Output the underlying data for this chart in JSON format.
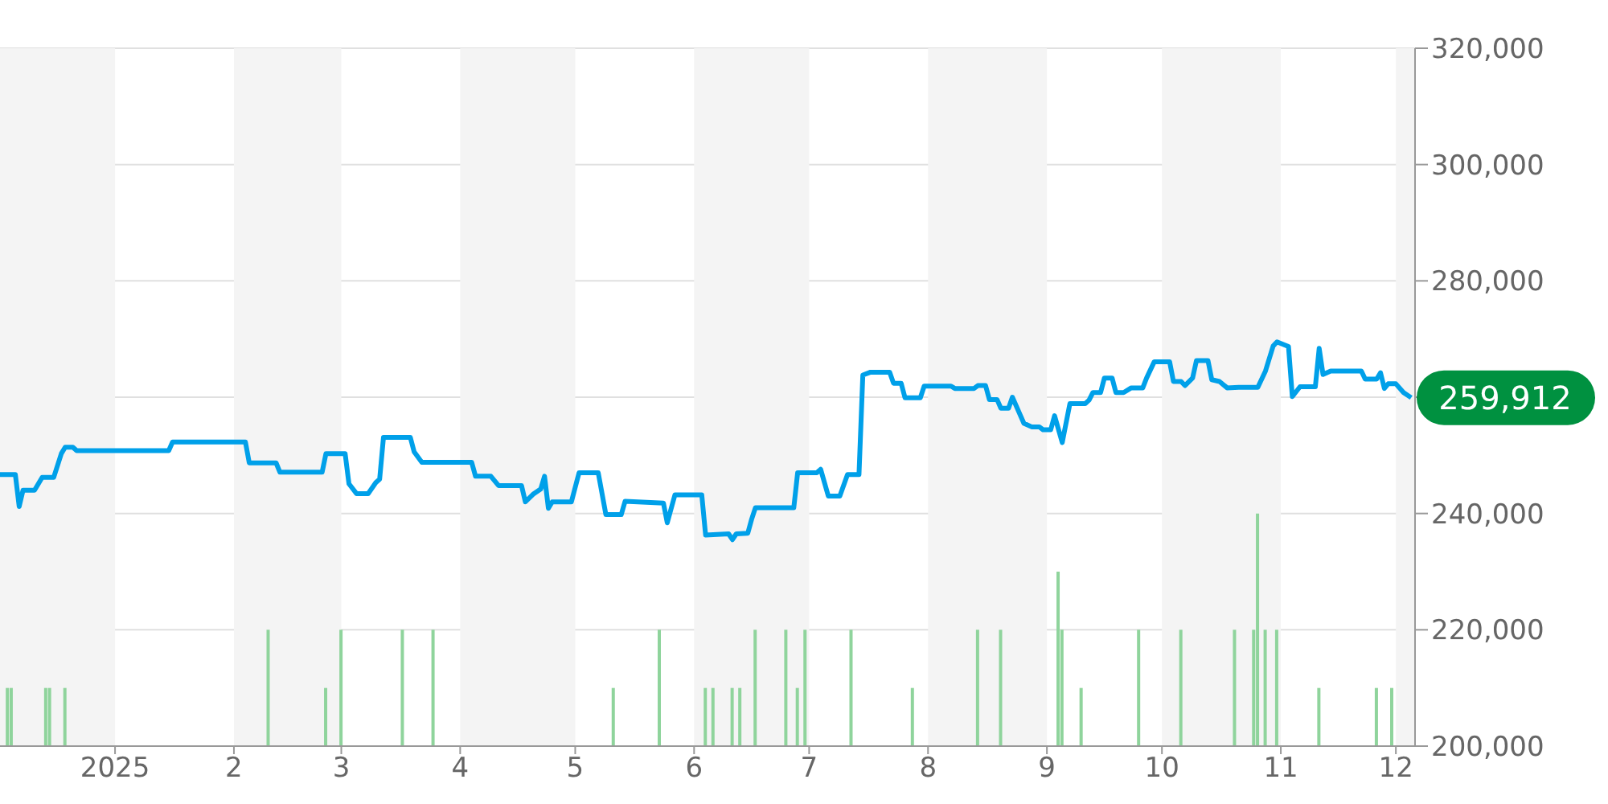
{
  "chart_data": {
    "type": "line",
    "xlim": [
      "2024-12-02",
      "2025-12-06"
    ],
    "xticks": [
      {
        "value": "2025-01-01",
        "label": "2025"
      },
      {
        "value": "2025-02-01",
        "label": "2"
      },
      {
        "value": "2025-03-01",
        "label": "3"
      },
      {
        "value": "2025-04-01",
        "label": "4"
      },
      {
        "value": "2025-05-01",
        "label": "5"
      },
      {
        "value": "2025-06-01",
        "label": "6"
      },
      {
        "value": "2025-07-01",
        "label": "7"
      },
      {
        "value": "2025-08-01",
        "label": "8"
      },
      {
        "value": "2025-09-01",
        "label": "9"
      },
      {
        "value": "2025-10-01",
        "label": "10"
      },
      {
        "value": "2025-11-01",
        "label": "11"
      },
      {
        "value": "2025-12-01",
        "label": "12"
      }
    ],
    "ylim": [
      200000,
      320000
    ],
    "yticks": [
      {
        "value": 200000,
        "label": "200,000"
      },
      {
        "value": 220000,
        "label": "220,000"
      },
      {
        "value": 240000,
        "label": "240,000"
      },
      {
        "value": 260000,
        "label": null
      },
      {
        "value": 280000,
        "label": "280,000"
      },
      {
        "value": 300000,
        "label": "300,000"
      },
      {
        "value": 320000,
        "label": "320,000"
      }
    ],
    "grid": "y",
    "bands": [
      {
        "axis": "x",
        "from": "2024-12-02",
        "to": "2025-01-01",
        "color": "#f4f4f4"
      },
      {
        "axis": "x",
        "from": "2025-02-01",
        "to": "2025-03-01",
        "color": "#f4f4f4"
      },
      {
        "axis": "x",
        "from": "2025-04-01",
        "to": "2025-05-01",
        "color": "#f4f4f4"
      },
      {
        "axis": "x",
        "from": "2025-06-01",
        "to": "2025-07-01",
        "color": "#f4f4f4"
      },
      {
        "axis": "x",
        "from": "2025-08-01",
        "to": "2025-09-01",
        "color": "#f4f4f4"
      },
      {
        "axis": "x",
        "from": "2025-10-01",
        "to": "2025-11-01",
        "color": "#f4f4f4"
      },
      {
        "axis": "x",
        "from": "2025-12-01",
        "to": "2025-12-06",
        "color": "#f4f4f4"
      }
    ],
    "series": [
      {
        "type": "bar",
        "color": "#8fd49c",
        "x": [
          "2024-12-04",
          "2024-12-05",
          "2024-12-14",
          "2024-12-15",
          "2024-12-19",
          "2025-02-10",
          "2025-02-25",
          "2025-03-01",
          "2025-03-17",
          "2025-03-25",
          "2025-05-11",
          "2025-05-23",
          "2025-06-04",
          "2025-06-06",
          "2025-06-11",
          "2025-06-13",
          "2025-06-17",
          "2025-06-25",
          "2025-06-28",
          "2025-06-30",
          "2025-07-12",
          "2025-07-28",
          "2025-08-14",
          "2025-08-20",
          "2025-09-04",
          "2025-09-05",
          "2025-09-10",
          "2025-09-25",
          "2025-10-06",
          "2025-10-20",
          "2025-10-25",
          "2025-10-26",
          "2025-10-28",
          "2025-10-31",
          "2025-11-11",
          "2025-11-26",
          "2025-11-30"
        ],
        "values": [
          210000,
          210000,
          210000,
          210000,
          210000,
          220000,
          210000,
          220000,
          220000,
          220000,
          210000,
          220000,
          210000,
          210000,
          210000,
          210000,
          220000,
          220000,
          210000,
          220000,
          220000,
          210000,
          220000,
          220000,
          230000,
          220000,
          210000,
          220000,
          220000,
          220000,
          220000,
          240000,
          220000,
          220000,
          210000,
          210000,
          210000
        ]
      },
      {
        "color": "#00a0e9",
        "x": [
          "2024-12-02",
          "2024-12-06",
          "2024-12-07",
          "2024-12-08",
          "2024-12-11",
          "2024-12-13",
          "2024-12-16",
          "2024-12-18",
          "2024-12-19",
          "2024-12-21",
          "2024-12-22",
          "2025-01-15",
          "2025-01-16",
          "2025-02-04",
          "2025-02-05",
          "2025-02-12",
          "2025-02-13",
          "2025-02-24",
          "2025-02-25",
          "2025-03-02",
          "2025-03-03",
          "2025-03-05",
          "2025-03-08",
          "2025-03-10",
          "2025-03-11",
          "2025-03-12",
          "2025-03-19",
          "2025-03-20",
          "2025-03-22",
          "2025-04-04",
          "2025-04-05",
          "2025-04-09",
          "2025-04-11",
          "2025-04-17",
          "2025-04-18",
          "2025-04-20",
          "2025-04-22",
          "2025-04-23",
          "2025-04-24",
          "2025-04-25",
          "2025-04-30",
          "2025-05-02",
          "2025-05-07",
          "2025-05-09",
          "2025-05-13",
          "2025-05-14",
          "2025-05-24",
          "2025-05-25",
          "2025-05-27",
          "2025-06-03",
          "2025-06-04",
          "2025-06-10",
          "2025-06-11",
          "2025-06-12",
          "2025-06-15",
          "2025-06-16",
          "2025-06-17",
          "2025-06-27",
          "2025-06-28",
          "2025-07-03",
          "2025-07-04",
          "2025-07-06",
          "2025-07-09",
          "2025-07-11",
          "2025-07-14",
          "2025-07-15",
          "2025-07-17",
          "2025-07-22",
          "2025-07-23",
          "2025-07-25",
          "2025-07-26",
          "2025-07-30",
          "2025-07-31",
          "2025-08-07",
          "2025-08-08",
          "2025-08-13",
          "2025-08-14",
          "2025-08-16",
          "2025-08-17",
          "2025-08-19",
          "2025-08-20",
          "2025-08-22",
          "2025-08-23",
          "2025-08-26",
          "2025-08-28",
          "2025-08-30",
          "2025-08-31",
          "2025-09-02",
          "2025-09-03",
          "2025-09-05",
          "2025-09-07",
          "2025-09-11",
          "2025-09-12",
          "2025-09-13",
          "2025-09-15",
          "2025-09-16",
          "2025-09-18",
          "2025-09-19",
          "2025-09-21",
          "2025-09-23",
          "2025-09-26",
          "2025-09-27",
          "2025-09-29",
          "2025-10-03",
          "2025-10-04",
          "2025-10-06",
          "2025-10-07",
          "2025-10-09",
          "2025-10-10",
          "2025-10-13",
          "2025-10-14",
          "2025-10-16",
          "2025-10-18",
          "2025-10-21",
          "2025-10-26",
          "2025-10-28",
          "2025-10-30",
          "2025-10-31",
          "2025-11-03",
          "2025-11-04",
          "2025-11-06",
          "2025-11-10",
          "2025-11-11",
          "2025-11-12",
          "2025-11-14",
          "2025-11-22",
          "2025-11-23",
          "2025-11-26",
          "2025-11-27",
          "2025-11-28",
          "2025-11-29",
          "2025-12-01",
          "2025-12-03",
          "2025-12-05"
        ],
        "values": [
          246700,
          246700,
          241200,
          244000,
          244000,
          246200,
          246200,
          250300,
          251400,
          251400,
          250800,
          250800,
          252300,
          252300,
          248700,
          248700,
          247100,
          247100,
          250300,
          250300,
          245100,
          243400,
          243400,
          245300,
          245900,
          253100,
          253100,
          250600,
          248800,
          248800,
          246400,
          246400,
          244800,
          244800,
          242000,
          243300,
          244200,
          246400,
          240900,
          242000,
          242000,
          247000,
          247000,
          239800,
          239800,
          242100,
          241800,
          238400,
          243200,
          243200,
          236300,
          236500,
          235500,
          236500,
          236600,
          239000,
          241000,
          241000,
          247000,
          247000,
          247600,
          243000,
          243000,
          246700,
          246700,
          263800,
          264300,
          264300,
          262400,
          262400,
          259900,
          259900,
          261900,
          261900,
          261500,
          261500,
          262000,
          262000,
          259600,
          259600,
          258100,
          258100,
          260000,
          255500,
          254900,
          254900,
          254400,
          254400,
          256800,
          252200,
          258900,
          258900,
          259500,
          260800,
          260800,
          263300,
          263300,
          260800,
          260800,
          261600,
          261600,
          263300,
          266100,
          266100,
          262700,
          262700,
          262000,
          263300,
          266300,
          266300,
          263000,
          262700,
          261600,
          261700,
          261700,
          264500,
          268800,
          269500,
          268700,
          260100,
          261800,
          261800,
          268400,
          263900,
          264500,
          264500,
          263100,
          263100,
          264200,
          261500,
          262300,
          262300,
          260800,
          259912
        ]
      }
    ],
    "annotations": [
      {
        "text": "259,912",
        "x": "2025-12-05",
        "y": 259912
      }
    ]
  }
}
